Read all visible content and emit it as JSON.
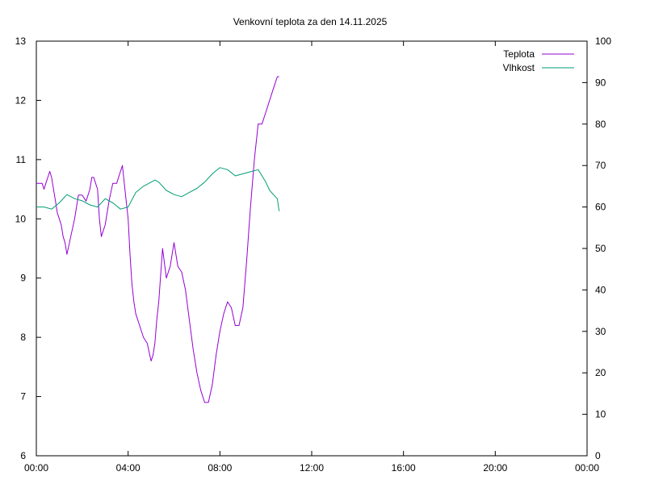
{
  "chart_data": {
    "type": "line",
    "title": "Venkovní teplota za den 14.11.2025",
    "xlabel": "",
    "ylabel": "",
    "xlim_hours": [
      0,
      24
    ],
    "x_ticks": [
      "00:00",
      "04:00",
      "08:00",
      "12:00",
      "16:00",
      "20:00",
      "00:00"
    ],
    "y_left": {
      "min": 6,
      "max": 13,
      "ticks": [
        6,
        7,
        8,
        9,
        10,
        11,
        12,
        13
      ]
    },
    "y_right": {
      "min": 0,
      "max": 100,
      "ticks": [
        0,
        10,
        20,
        30,
        40,
        50,
        60,
        70,
        80,
        90,
        100
      ]
    },
    "grid": false,
    "legend_position": "top-right",
    "series": [
      {
        "name": "Teplota",
        "axis": "left",
        "color": "#9400d3",
        "x": [
          "00:00",
          "00:15",
          "00:20",
          "00:25",
          "00:30",
          "00:35",
          "00:40",
          "00:45",
          "00:50",
          "00:55",
          "01:00",
          "01:05",
          "01:10",
          "01:15",
          "01:20",
          "01:30",
          "01:40",
          "01:50",
          "02:00",
          "02:10",
          "02:20",
          "02:25",
          "02:30",
          "02:35",
          "02:40",
          "02:45",
          "02:50",
          "03:00",
          "03:10",
          "03:20",
          "03:30",
          "03:40",
          "03:45",
          "03:50",
          "04:00",
          "04:05",
          "04:10",
          "04:15",
          "04:20",
          "04:30",
          "04:40",
          "04:50",
          "05:00",
          "05:05",
          "05:10",
          "05:15",
          "05:20",
          "05:30",
          "05:40",
          "05:50",
          "06:00",
          "06:10",
          "06:20",
          "06:30",
          "06:40",
          "06:50",
          "07:00",
          "07:10",
          "07:20",
          "07:30",
          "07:40",
          "07:50",
          "08:00",
          "08:10",
          "08:20",
          "08:30",
          "08:40",
          "08:50",
          "09:00",
          "09:10",
          "09:20",
          "09:30",
          "09:40",
          "09:50",
          "10:00",
          "10:10",
          "10:20",
          "10:30",
          "10:35"
        ],
        "values": [
          10.6,
          10.6,
          10.5,
          10.6,
          10.7,
          10.8,
          10.7,
          10.5,
          10.3,
          10.1,
          10.0,
          9.9,
          9.7,
          9.6,
          9.4,
          9.7,
          10.0,
          10.4,
          10.4,
          10.3,
          10.5,
          10.7,
          10.7,
          10.6,
          10.5,
          10.0,
          9.7,
          9.9,
          10.3,
          10.6,
          10.6,
          10.8,
          10.9,
          10.6,
          10.0,
          9.4,
          8.9,
          8.6,
          8.4,
          8.2,
          8.0,
          7.9,
          7.6,
          7.7,
          7.9,
          8.3,
          8.6,
          9.5,
          9.0,
          9.2,
          9.6,
          9.2,
          9.1,
          8.8,
          8.3,
          7.8,
          7.4,
          7.1,
          6.9,
          6.9,
          7.2,
          7.7,
          8.1,
          8.4,
          8.6,
          8.5,
          8.2,
          8.2,
          8.5,
          9.3,
          10.2,
          11.0,
          11.6,
          11.6,
          11.8,
          12.0,
          12.2,
          12.4,
          12.4
        ]
      },
      {
        "name": "Vlhkost",
        "axis": "right",
        "color": "#009e73",
        "x": [
          "00:00",
          "00:20",
          "00:40",
          "01:00",
          "01:20",
          "01:40",
          "02:00",
          "02:20",
          "02:40",
          "03:00",
          "03:20",
          "03:40",
          "04:00",
          "04:20",
          "04:40",
          "05:00",
          "05:10",
          "05:20",
          "05:40",
          "06:00",
          "06:20",
          "06:40",
          "07:00",
          "07:20",
          "07:40",
          "08:00",
          "08:20",
          "08:40",
          "09:00",
          "09:20",
          "09:40",
          "10:00",
          "10:10",
          "10:20",
          "10:30",
          "10:35"
        ],
        "values": [
          60,
          60,
          59.5,
          61,
          63,
          62,
          61.5,
          60.5,
          60,
          62,
          61,
          59.5,
          60,
          63.5,
          65,
          66,
          66.5,
          66,
          64,
          63,
          62.5,
          63.5,
          64.5,
          66,
          68,
          69.5,
          69,
          67.5,
          68,
          68.5,
          69,
          66,
          64,
          63,
          62,
          59
        ]
      }
    ]
  }
}
